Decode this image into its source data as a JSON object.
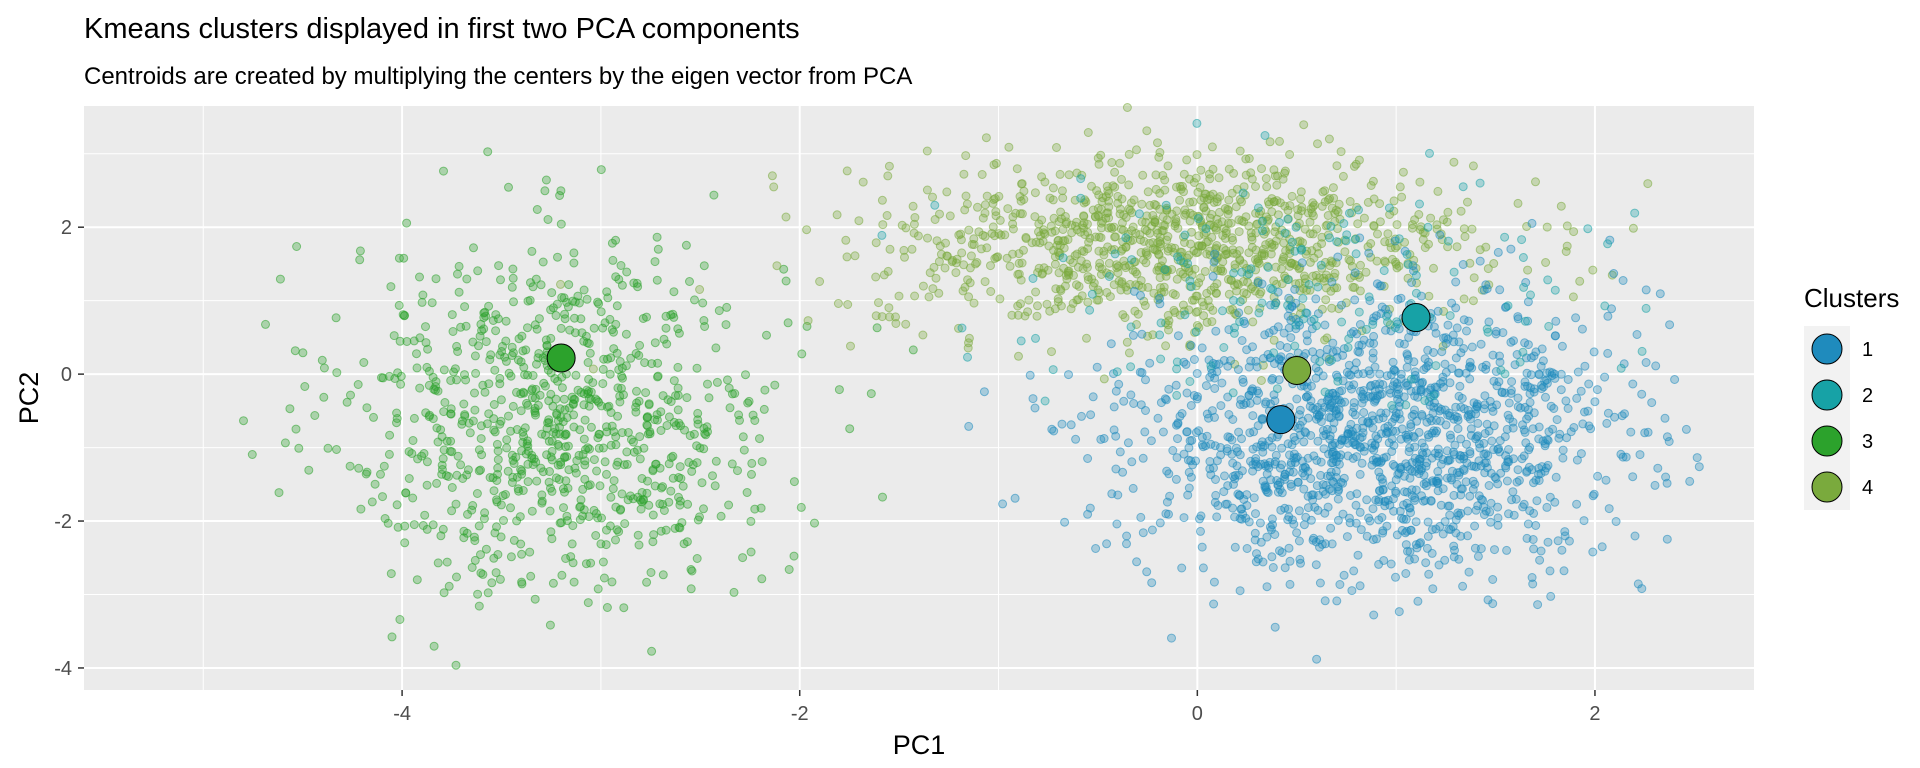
{
  "chart_data": {
    "type": "scatter",
    "title": "Kmeans clusters displayed in first two PCA components",
    "subtitle": "Centroids are created by multiplying the centers by the eigen vector from PCA",
    "xlabel": "PC1",
    "ylabel": "PC2",
    "xlim": [
      -5.6,
      2.8
    ],
    "ylim": [
      -4.3,
      3.65
    ],
    "x_ticks": [
      -4,
      -2,
      0,
      2
    ],
    "y_ticks": [
      -4,
      -2,
      0,
      2
    ],
    "x_tick_labels": [
      "-4",
      "-2",
      "0",
      "2"
    ],
    "y_tick_labels": [
      "-4",
      "-2",
      "0",
      "2"
    ],
    "grid": true,
    "legend": {
      "title": "Clusters",
      "position": "right"
    },
    "series": [
      {
        "name": "1",
        "color": "#1f8bbd",
        "center": [
          0.9,
          -0.8
        ],
        "spread": [
          0.62,
          0.95
        ],
        "point_count": 1500,
        "centroid": [
          0.42,
          -0.62
        ]
      },
      {
        "name": "2",
        "color": "#17a2a6",
        "center": [
          0.55,
          1.2
        ],
        "spread": [
          0.75,
          0.8
        ],
        "point_count": 160,
        "centroid": [
          1.1,
          0.77
        ]
      },
      {
        "name": "3",
        "color": "#2ca22c",
        "center": [
          -3.2,
          -0.6
        ],
        "spread": [
          0.55,
          1.2
        ],
        "point_count": 900,
        "centroid": [
          -3.2,
          0.22
        ]
      },
      {
        "name": "4",
        "color": "#7aaa3d",
        "center": [
          -0.1,
          1.75
        ],
        "spread": [
          0.75,
          0.6
        ],
        "point_count": 1100,
        "centroid": [
          0.5,
          0.05
        ]
      }
    ]
  }
}
